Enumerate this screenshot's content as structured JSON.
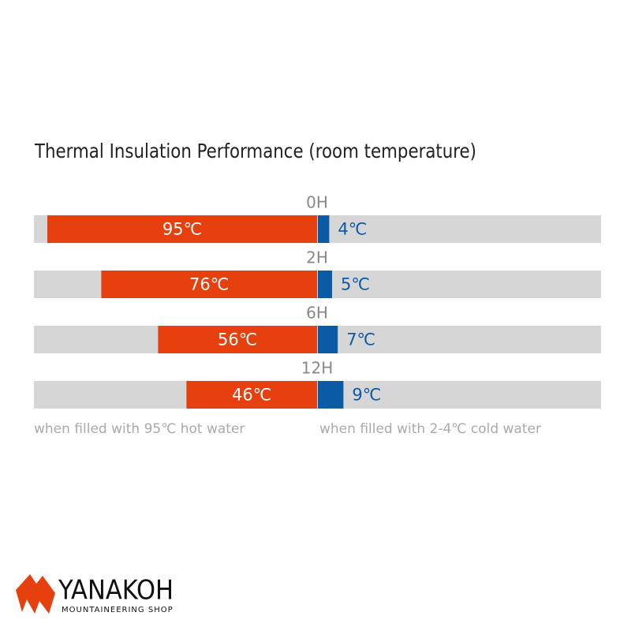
{
  "chart_data": {
    "type": "diverging-bar",
    "title": "Thermal Insulation Performance (room temperature)",
    "categories": [
      "0H",
      "2H",
      "6H",
      "12H"
    ],
    "series": [
      {
        "name": "when filled with 95℃ hot water",
        "color": "#e6400e",
        "values": [
          95,
          76,
          56,
          46
        ],
        "value_labels": [
          "95℃",
          "76℃",
          "56℃",
          "46℃"
        ]
      },
      {
        "name": "when filled with 2-4℃ cold water",
        "color": "#0b5aa6",
        "values": [
          4,
          5,
          7,
          9
        ],
        "value_labels": [
          "4℃",
          "5℃",
          "7℃",
          "9℃"
        ]
      }
    ]
  },
  "logo": {
    "name": "YANAKOH",
    "tagline": "MOUNTAINEERING SHOP"
  }
}
